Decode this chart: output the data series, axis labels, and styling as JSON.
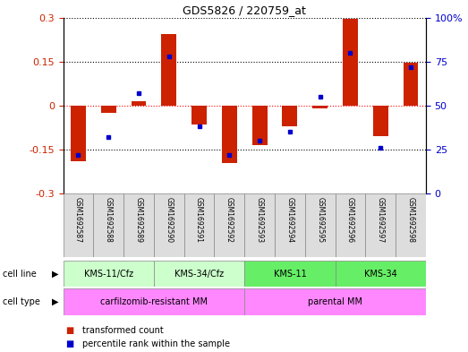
{
  "title": "GDS5826 / 220759_at",
  "samples": [
    "GSM1692587",
    "GSM1692588",
    "GSM1692589",
    "GSM1692590",
    "GSM1692591",
    "GSM1692592",
    "GSM1692593",
    "GSM1692594",
    "GSM1692595",
    "GSM1692596",
    "GSM1692597",
    "GSM1692598"
  ],
  "transformed_count": [
    -0.19,
    -0.025,
    0.015,
    0.245,
    -0.065,
    -0.195,
    -0.135,
    -0.07,
    -0.01,
    0.295,
    -0.105,
    0.145
  ],
  "percentile_rank": [
    22,
    32,
    57,
    78,
    38,
    22,
    30,
    35,
    55,
    80,
    26,
    72
  ],
  "cell_line_groups": [
    {
      "label": "KMS-11/Cfz",
      "start": 0,
      "end": 2,
      "color": "#CCFFCC"
    },
    {
      "label": "KMS-34/Cfz",
      "start": 3,
      "end": 5,
      "color": "#CCFFCC"
    },
    {
      "label": "KMS-11",
      "start": 6,
      "end": 8,
      "color": "#66EE66"
    },
    {
      "label": "KMS-34",
      "start": 9,
      "end": 11,
      "color": "#66EE66"
    }
  ],
  "cell_type_groups": [
    {
      "label": "carfilzomib-resistant MM",
      "start": 0,
      "end": 5,
      "color": "#FF88FF"
    },
    {
      "label": "parental MM",
      "start": 6,
      "end": 11,
      "color": "#FF88FF"
    }
  ],
  "ylim": [
    -0.3,
    0.3
  ],
  "yticks_left": [
    -0.3,
    -0.15,
    0,
    0.15,
    0.3
  ],
  "yticks_right": [
    0,
    25,
    50,
    75,
    100
  ],
  "bar_color": "#CC2200",
  "dot_color": "#0000CC",
  "background_color": "#FFFFFF",
  "plot_bg": "#FFFFFF",
  "legend_items": [
    {
      "label": "transformed count",
      "color": "#CC2200"
    },
    {
      "label": "percentile rank within the sample",
      "color": "#0000CC"
    }
  ]
}
